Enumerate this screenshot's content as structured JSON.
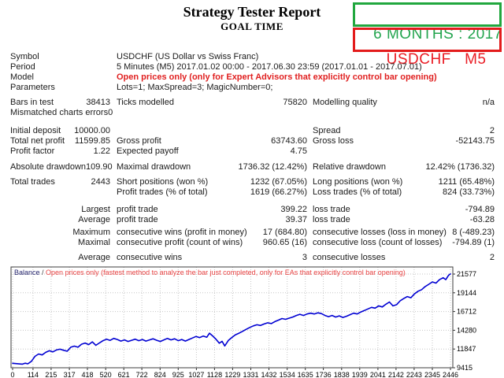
{
  "header": {
    "title": "Strategy Tester Report",
    "subtitle": "GOAL TIME"
  },
  "badges": {
    "period_label": "6 MONTHS : 2017",
    "symbol_label": "USDCHF   M5",
    "green": "#21a73e",
    "red": "#e31b1b"
  },
  "report": {
    "rows": [
      {
        "l1": "Symbol",
        "wide": "USDCHF (US Dollar vs Swiss Franc)"
      },
      {
        "l1": "Period",
        "wide": "5 Minutes (M5) 2017.01.02 00:00 - 2017.06.30 23:59 (2017.01.01 - 2017.07.01)"
      },
      {
        "l1": "Model",
        "wide": "Open prices only (only for Expert Advisors that explicitly control bar opening)",
        "cls": "red"
      },
      {
        "l1": "Parameters",
        "wide": "Lots=1; MaxSpread=3; MagicNumber=0;"
      },
      {
        "mt": 6,
        "l1": "Bars in test",
        "v1": "38413",
        "l2": "Ticks modelled",
        "v2": "75820",
        "l3": "Modelling quality",
        "v3": "n/a"
      },
      {
        "l1": "Mismatched charts errors",
        "v1": "0"
      },
      {
        "mt": 10,
        "l1": "Initial deposit",
        "v1": "10000.00",
        "l3": "Spread",
        "v3": "2"
      },
      {
        "l1": "Total net profit",
        "v1": "11599.85",
        "l2": "Gross profit",
        "v2": "63743.60",
        "l3": "Gross loss",
        "v3": "-52143.75"
      },
      {
        "l1": "Profit factor",
        "v1": "1.22",
        "l2": "Expected payoff",
        "v2": "4.75"
      },
      {
        "mt": 7,
        "l1": "Absolute drawdown",
        "v1": "109.90",
        "l2": "Maximal drawdown",
        "v2": "1736.32 (12.42%)",
        "l3": "Relative drawdown",
        "v3": "12.42% (1736.32)"
      },
      {
        "mt": 6,
        "l1": "Total trades",
        "v1": "2443",
        "l2": "Short positions (won %)",
        "v2": "1232 (67.05%)",
        "l3": "Long positions (won %)",
        "v3": "1211 (65.48%)"
      },
      {
        "l2": "Profit trades (% of total)",
        "v2": "1619 (66.27%)",
        "l3": "Loss trades (% of total)",
        "v3": "824 (33.73%)"
      },
      {
        "mt": 9,
        "v1": "Largest",
        "l2": "profit trade",
        "v2": "399.22",
        "l3": "loss trade",
        "v3": "-794.89"
      },
      {
        "v1": "Average",
        "l2": "profit trade",
        "v2": "39.37",
        "l3": "loss trade",
        "v3": "-63.28"
      },
      {
        "mt": 3,
        "v1": "Maximum",
        "l2": "consecutive wins (profit in money)",
        "v2": "17 (684.80)",
        "l3": "consecutive losses (loss in money)",
        "v3": "8 (-489.23)"
      },
      {
        "v1": "Maximal",
        "l2": "consecutive profit (count of wins)",
        "v2": "960.65 (16)",
        "l3": "consecutive loss (count of losses)",
        "v3": "-794.89 (1)"
      },
      {
        "mt": 6,
        "v1": "Average",
        "l2": "consecutive wins",
        "v2": "3",
        "l3": "consecutive losses",
        "v3": "2"
      }
    ]
  },
  "chart_data": {
    "type": "line",
    "title": "Balance",
    "separator": " / ",
    "subtitle": "Open prices only (fastest method to analyze the bar just completed, only for EAs that explicitly control bar opening)",
    "xlabel": "",
    "ylabel": "",
    "xlim": [
      0,
      2446
    ],
    "ylim": [
      9415,
      21577
    ],
    "x_ticks": [
      0,
      114,
      215,
      317,
      418,
      520,
      621,
      722,
      824,
      925,
      1027,
      1128,
      1229,
      1331,
      1432,
      1534,
      1635,
      1736,
      1838,
      1939,
      2041,
      2142,
      2243,
      2345,
      2446
    ],
    "y_ticks": [
      9415,
      11847,
      14280,
      16712,
      19144,
      21577
    ],
    "grid": true,
    "legend": false,
    "line_color": "#0000d2",
    "series": [
      {
        "name": "Balance",
        "points": [
          [
            0,
            10000
          ],
          [
            30,
            9940
          ],
          [
            55,
            9890
          ],
          [
            70,
            10010
          ],
          [
            85,
            9930
          ],
          [
            105,
            10250
          ],
          [
            125,
            10900
          ],
          [
            145,
            11200
          ],
          [
            165,
            11080
          ],
          [
            185,
            11420
          ],
          [
            205,
            11620
          ],
          [
            225,
            11480
          ],
          [
            245,
            11720
          ],
          [
            265,
            11830
          ],
          [
            285,
            11680
          ],
          [
            305,
            11560
          ],
          [
            325,
            12080
          ],
          [
            345,
            12230
          ],
          [
            365,
            12080
          ],
          [
            385,
            12470
          ],
          [
            405,
            12620
          ],
          [
            425,
            12420
          ],
          [
            445,
            12780
          ],
          [
            465,
            12330
          ],
          [
            485,
            12630
          ],
          [
            505,
            12930
          ],
          [
            525,
            13120
          ],
          [
            545,
            12970
          ],
          [
            565,
            13230
          ],
          [
            585,
            13080
          ],
          [
            605,
            12880
          ],
          [
            625,
            13030
          ],
          [
            645,
            12830
          ],
          [
            665,
            12980
          ],
          [
            685,
            13130
          ],
          [
            705,
            12930
          ],
          [
            725,
            13080
          ],
          [
            745,
            12880
          ],
          [
            765,
            13030
          ],
          [
            785,
            13180
          ],
          [
            805,
            12980
          ],
          [
            825,
            12830
          ],
          [
            845,
            13030
          ],
          [
            865,
            13230
          ],
          [
            885,
            13030
          ],
          [
            905,
            13180
          ],
          [
            925,
            12930
          ],
          [
            945,
            13080
          ],
          [
            965,
            12880
          ],
          [
            985,
            13080
          ],
          [
            1005,
            13280
          ],
          [
            1025,
            13480
          ],
          [
            1045,
            13330
          ],
          [
            1065,
            13530
          ],
          [
            1085,
            13380
          ],
          [
            1100,
            13900
          ],
          [
            1115,
            13600
          ],
          [
            1135,
            13150
          ],
          [
            1155,
            12600
          ],
          [
            1170,
            12850
          ],
          [
            1185,
            12250
          ],
          [
            1205,
            12950
          ],
          [
            1225,
            13350
          ],
          [
            1245,
            13700
          ],
          [
            1265,
            13900
          ],
          [
            1285,
            14150
          ],
          [
            1305,
            14400
          ],
          [
            1325,
            14650
          ],
          [
            1345,
            14850
          ],
          [
            1365,
            15000
          ],
          [
            1385,
            14900
          ],
          [
            1405,
            15100
          ],
          [
            1425,
            15250
          ],
          [
            1445,
            15150
          ],
          [
            1465,
            15400
          ],
          [
            1485,
            15600
          ],
          [
            1505,
            15800
          ],
          [
            1525,
            15700
          ],
          [
            1545,
            15850
          ],
          [
            1565,
            16000
          ],
          [
            1585,
            16200
          ],
          [
            1605,
            16350
          ],
          [
            1625,
            16200
          ],
          [
            1645,
            16400
          ],
          [
            1665,
            16500
          ],
          [
            1685,
            16400
          ],
          [
            1705,
            16550
          ],
          [
            1725,
            16450
          ],
          [
            1745,
            16200
          ],
          [
            1765,
            16050
          ],
          [
            1785,
            16200
          ],
          [
            1805,
            16000
          ],
          [
            1825,
            16150
          ],
          [
            1845,
            15950
          ],
          [
            1865,
            16100
          ],
          [
            1885,
            16300
          ],
          [
            1905,
            16500
          ],
          [
            1925,
            16400
          ],
          [
            1945,
            16650
          ],
          [
            1965,
            16850
          ],
          [
            1985,
            17050
          ],
          [
            2005,
            17250
          ],
          [
            2025,
            17150
          ],
          [
            2045,
            17450
          ],
          [
            2065,
            17300
          ],
          [
            2085,
            17650
          ],
          [
            2105,
            17950
          ],
          [
            2125,
            17450
          ],
          [
            2145,
            17600
          ],
          [
            2165,
            18100
          ],
          [
            2185,
            18400
          ],
          [
            2205,
            18650
          ],
          [
            2225,
            18500
          ],
          [
            2245,
            19000
          ],
          [
            2265,
            19350
          ],
          [
            2285,
            19550
          ],
          [
            2305,
            19950
          ],
          [
            2325,
            20250
          ],
          [
            2345,
            20550
          ],
          [
            2365,
            20400
          ],
          [
            2385,
            20850
          ],
          [
            2405,
            21100
          ],
          [
            2420,
            20850
          ],
          [
            2435,
            21400
          ],
          [
            2446,
            21600
          ]
        ]
      }
    ]
  }
}
